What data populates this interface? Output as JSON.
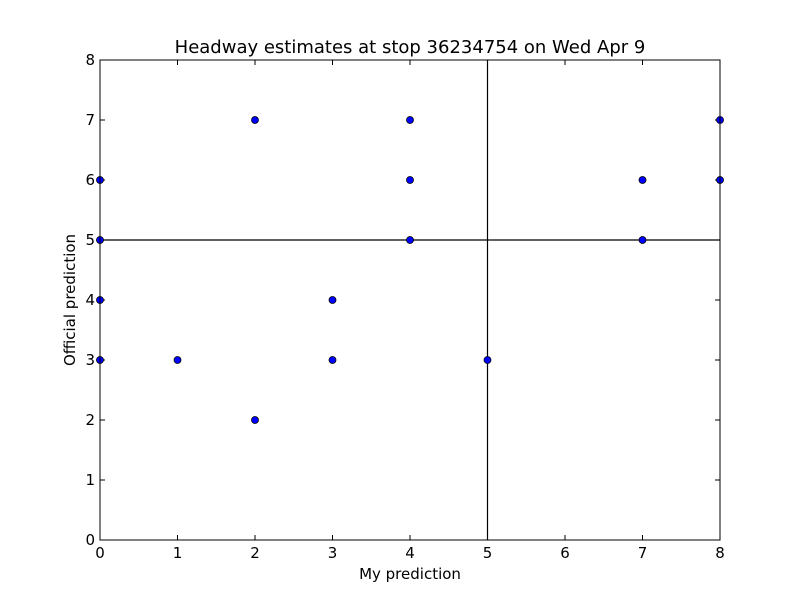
{
  "chart_data": {
    "type": "scatter",
    "title": "Headway estimates at stop 36234754 on Wed Apr 9",
    "xlabel": "My prediction",
    "ylabel": "Official prediction",
    "xlim": [
      0,
      8
    ],
    "ylim": [
      0,
      8
    ],
    "xticks": [
      "0",
      "1",
      "2",
      "3",
      "4",
      "5",
      "6",
      "7",
      "8"
    ],
    "yticks": [
      "0",
      "1",
      "2",
      "3",
      "4",
      "5",
      "6",
      "7",
      "8"
    ],
    "grid": false,
    "reference_lines": {
      "x": 5,
      "y": 5
    },
    "marker_color": "#0000ff",
    "points": [
      {
        "x": 0,
        "y": 6
      },
      {
        "x": 0,
        "y": 5
      },
      {
        "x": 0,
        "y": 4
      },
      {
        "x": 0,
        "y": 3
      },
      {
        "x": 1,
        "y": 3
      },
      {
        "x": 2,
        "y": 7
      },
      {
        "x": 2,
        "y": 2
      },
      {
        "x": 3,
        "y": 4
      },
      {
        "x": 3,
        "y": 3
      },
      {
        "x": 4,
        "y": 7
      },
      {
        "x": 4,
        "y": 6
      },
      {
        "x": 4,
        "y": 5
      },
      {
        "x": 5,
        "y": 3
      },
      {
        "x": 7,
        "y": 6
      },
      {
        "x": 7,
        "y": 5
      },
      {
        "x": 8,
        "y": 7
      },
      {
        "x": 8,
        "y": 6
      }
    ]
  }
}
